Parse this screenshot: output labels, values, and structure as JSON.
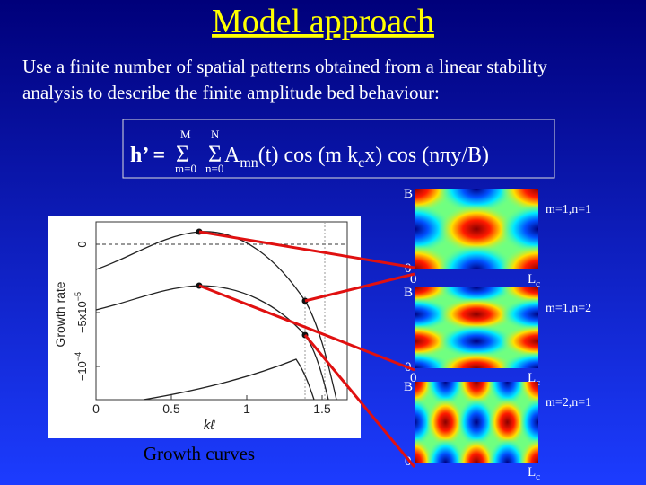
{
  "title": "Model approach",
  "body": [
    "Use a finite number of spatial patterns obtained from a linear stability",
    "analysis to describe the finite amplitude bed behaviour:"
  ],
  "formula": {
    "lhs": "h’ = ",
    "sum1": "Σ",
    "sum1_top": "M",
    "sum1_bottom": "m=0",
    "sum2": "Σ",
    "sum2_top": "N",
    "sum2_bottom": "n=0",
    "a": " A",
    "a_sub": "mn",
    "mid": "(t) cos (m k",
    "k_sub": "c",
    "end": "x) cos (nπy/B)"
  },
  "patterns": [
    {
      "label": "m=1,n=1",
      "y_top": "B",
      "y_bottom": "0",
      "x_left": "0",
      "x_right": "L",
      "x_right_sub": "c"
    },
    {
      "label": "m=1,n=2",
      "y_top": "B",
      "y_bottom": "0",
      "x_left": "0",
      "x_right": "L",
      "x_right_sub": "c"
    },
    {
      "label": "m=2,n=1",
      "y_top": "B",
      "y_bottom": "0",
      "x_right": "L",
      "x_right_sub": "c"
    }
  ],
  "plot": {
    "y_label": "Growth rate",
    "y_ticks": [
      {
        "text": "0"
      },
      {
        "text": "−5x10",
        "sup": "−5"
      },
      {
        "text": "−10",
        "sup": "−4"
      }
    ],
    "x_ticks": [
      "0",
      "0.5",
      "1",
      "1.5"
    ],
    "x_label": "kℓ",
    "caption": "Growth curves"
  }
}
